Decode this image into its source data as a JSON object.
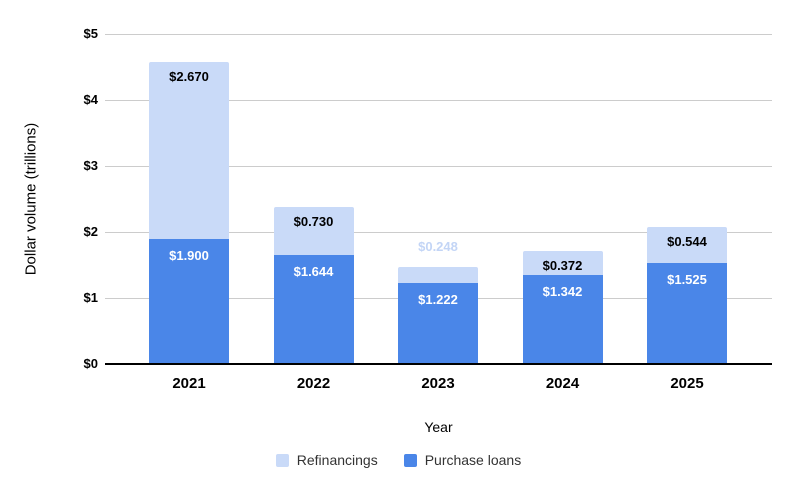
{
  "chart_data": {
    "type": "bar",
    "stacked": true,
    "categories": [
      "2021",
      "2022",
      "2023",
      "2024",
      "2025"
    ],
    "series": [
      {
        "name": "Purchase loans",
        "color": "#4a86e8",
        "values": [
          1.9,
          1.644,
          1.222,
          1.342,
          1.525
        ],
        "data_labels": [
          "$1.900",
          "$1.644",
          "$1.222",
          "$1.342",
          "$1.525"
        ],
        "label_color": "#ffffff"
      },
      {
        "name": "Refinancings",
        "color": "#c9daf8",
        "values": [
          2.67,
          0.73,
          0.248,
          0.372,
          0.544
        ],
        "data_labels": [
          "$2.670",
          "$0.730",
          "$0.248",
          "$0.372",
          "$0.544"
        ],
        "label_color_inside": "#000000",
        "label_color_outside": "#c3d5f6"
      }
    ],
    "xlabel": "Year",
    "ylabel": "Dollar volume (trillions)",
    "y_ticks": [
      "$0",
      "$1",
      "$2",
      "$3",
      "$4",
      "$5"
    ],
    "ylim": [
      0,
      5
    ],
    "grid": true,
    "gridline_color": "#cccccc",
    "axis_line_color": "#000000",
    "legend_position": "bottom",
    "legend": [
      {
        "label": "Refinancings",
        "color": "#c9daf8"
      },
      {
        "label": "Purchase loans",
        "color": "#4a86e8"
      }
    ]
  }
}
